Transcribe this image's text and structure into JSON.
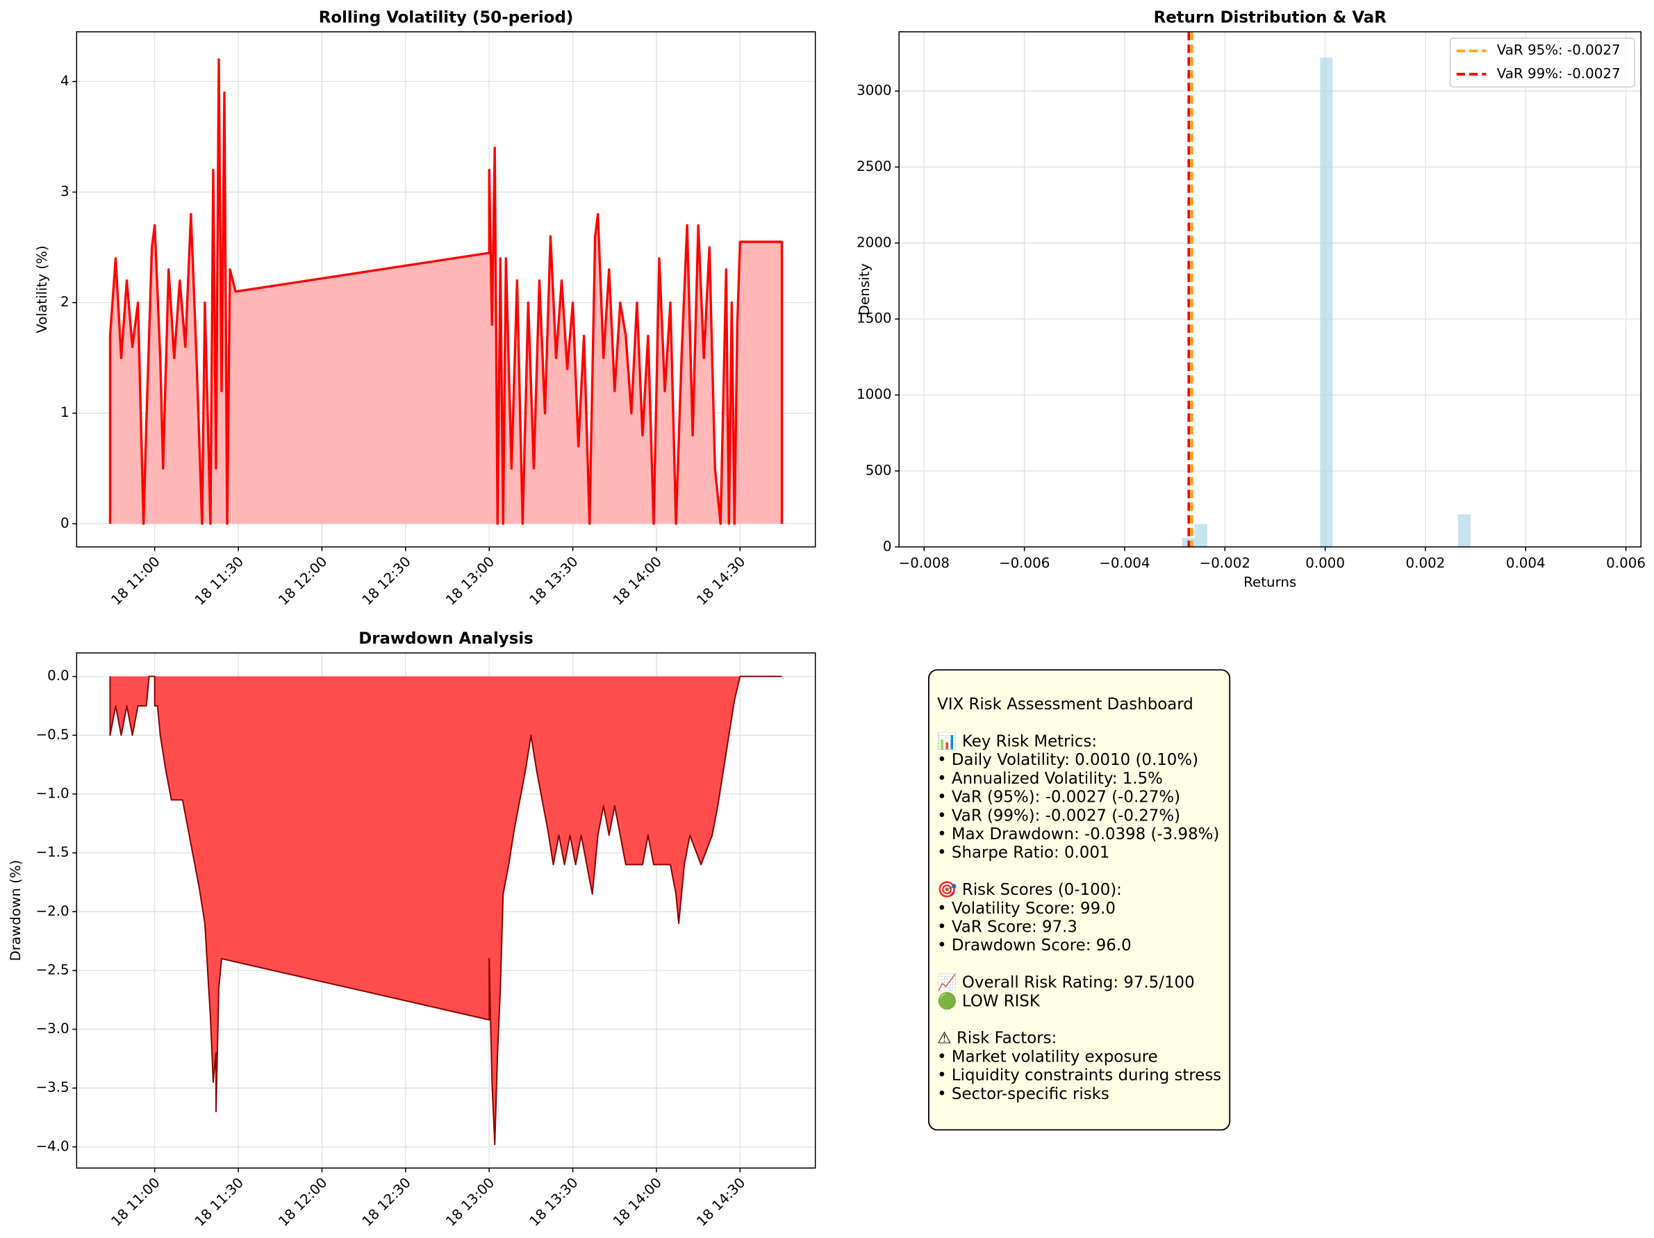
{
  "chart_data": [
    {
      "type": "line",
      "title": "Rolling Volatility (50-period)",
      "ylabel": "Volatility (%)",
      "color": "#ff0000",
      "fill_color": "#ffb3b3",
      "grid": true,
      "x": [
        "18 10:44",
        "18 10:44",
        "18 10:46",
        "18 10:48",
        "18 10:50",
        "18 10:52",
        "18 10:54",
        "18 10:56",
        "18 10:57",
        "18 10:59",
        "18 11:00",
        "18 11:02",
        "18 11:03",
        "18 11:05",
        "18 11:07",
        "18 11:09",
        "18 11:11",
        "18 11:13",
        "18 11:15",
        "18 11:17",
        "18 11:18",
        "18 11:20",
        "18 11:21",
        "18 11:22",
        "18 11:23",
        "18 11:24",
        "18 11:25",
        "18 11:26",
        "18 11:27",
        "18 11:29",
        "18 13:00",
        "18 13:00",
        "18 13:01",
        "18 13:02",
        "18 13:03",
        "18 13:04",
        "18 13:05",
        "18 13:06",
        "18 13:08",
        "18 13:10",
        "18 13:12",
        "18 13:14",
        "18 13:16",
        "18 13:18",
        "18 13:20",
        "18 13:22",
        "18 13:24",
        "18 13:26",
        "18 13:28",
        "18 13:30",
        "18 13:32",
        "18 13:34",
        "18 13:36",
        "18 13:38",
        "18 13:39",
        "18 13:41",
        "18 13:43",
        "18 13:45",
        "18 13:47",
        "18 13:49",
        "18 13:51",
        "18 13:53",
        "18 13:55",
        "18 13:57",
        "18 13:59",
        "18 14:01",
        "18 14:03",
        "18 14:05",
        "18 14:07",
        "18 14:09",
        "18 14:11",
        "18 14:13",
        "18 14:15",
        "18 14:17",
        "18 14:19",
        "18 14:21",
        "18 14:23",
        "18 14:25",
        "18 14:26",
        "18 14:27",
        "18 14:28",
        "18 14:29",
        "18 14:30",
        "18 14:45",
        "18 14:45"
      ],
      "values": [
        0,
        1.7,
        2.4,
        1.5,
        2.2,
        1.6,
        2.0,
        0,
        0.9,
        2.5,
        2.7,
        1.5,
        0.5,
        2.3,
        1.5,
        2.2,
        1.6,
        2.8,
        1.5,
        0,
        2.0,
        0,
        3.2,
        0.5,
        4.2,
        1.2,
        3.9,
        0,
        2.3,
        2.1,
        2.45,
        3.2,
        1.8,
        3.4,
        0,
        2.4,
        0,
        2.4,
        0.5,
        2.2,
        0,
        2.0,
        0.5,
        2.2,
        1.0,
        2.6,
        1.5,
        2.2,
        1.4,
        2.0,
        0.7,
        1.7,
        0,
        2.6,
        2.8,
        1.5,
        2.3,
        1.2,
        2.0,
        1.7,
        1.0,
        2.0,
        0.8,
        1.7,
        0,
        2.4,
        1.2,
        2.0,
        0,
        1.5,
        2.7,
        0.8,
        2.7,
        1.5,
        2.5,
        0.5,
        0,
        2.3,
        0,
        2.0,
        0,
        1.8,
        2.55,
        2.55,
        0
      ],
      "xlim": [
        "18 10:32",
        "18 14:57"
      ],
      "xticks": [
        "18 11:00",
        "18 11:30",
        "18 12:00",
        "18 12:30",
        "18 13:00",
        "18 13:30",
        "18 14:00",
        "18 14:30"
      ],
      "ylim": [
        -0.21,
        4.45
      ],
      "yticks": [
        0,
        1,
        2,
        3,
        4
      ]
    },
    {
      "type": "histogram",
      "title": "Return Distribution & VaR",
      "xlabel": "Returns",
      "ylabel": "Density",
      "color": "#add8e6",
      "grid": true,
      "legend": "upper right",
      "bins": [
        -0.00285,
        -0.0026,
        -0.00235,
        -0.0021,
        -0.00185,
        -0.0016,
        -0.00135,
        -0.0011,
        -0.00085,
        -0.0006,
        -0.00035,
        -0.0001,
        0.00015,
        0.0004,
        0.00065,
        0.0009,
        0.00115,
        0.0014,
        0.00165,
        0.0019,
        0.00215,
        0.0024,
        0.00265,
        0.0029
      ],
      "counts": [
        60,
        150,
        0,
        0,
        0,
        0,
        0,
        0,
        0,
        0,
        0,
        3220,
        0,
        0,
        0,
        0,
        0,
        0,
        0,
        0,
        0,
        0,
        215
      ],
      "vlines": [
        {
          "name": "VaR 95%: -0.0027",
          "value": -0.00266,
          "color": "#ffa500"
        },
        {
          "name": "VaR 99%: -0.0027",
          "value": -0.00272,
          "color": "#ff0000"
        }
      ],
      "xlim": [
        -0.0085,
        0.0063
      ],
      "xticks": [
        {
          "value": -0.008,
          "label": "−0.008"
        },
        {
          "value": -0.006,
          "label": "−0.006"
        },
        {
          "value": -0.004,
          "label": "−0.004"
        },
        {
          "value": -0.002,
          "label": "−0.002"
        },
        {
          "value": 0,
          "label": "0.000"
        },
        0.002,
        0.004,
        0.006
      ],
      "ylim": [
        0,
        3390
      ],
      "yticks": [
        0,
        500,
        1000,
        1500,
        2000,
        2500,
        3000
      ]
    },
    {
      "type": "area",
      "title": "Drawdown Analysis",
      "ylabel": "Drawdown (%)",
      "color": "#8b0000",
      "fill_color": "#ff4d4d",
      "grid": true,
      "x": [
        "18 10:44",
        "18 10:44",
        "18 10:46",
        "18 10:48",
        "18 10:50",
        "18 10:52",
        "18 10:54",
        "18 10:57",
        "18 10:58",
        "18 11:00",
        "18 11:00",
        "18 11:01",
        "18 11:02",
        "18 11:04",
        "18 11:06",
        "18 11:10",
        "18 11:12",
        "18 11:14",
        "18 11:16",
        "18 11:18",
        "18 11:19",
        "18 11:20",
        "18 11:21",
        "18 11:22",
        "18 11:22",
        "18 11:23",
        "18 11:24",
        "18 13:00",
        "18 13:00",
        "18 13:01",
        "18 13:02",
        "18 13:03",
        "18 13:04",
        "18 13:05",
        "18 13:07",
        "18 13:09",
        "18 13:11",
        "18 13:13",
        "18 13:15",
        "18 13:17",
        "18 13:19",
        "18 13:21",
        "18 13:23",
        "18 13:25",
        "18 13:27",
        "18 13:29",
        "18 13:31",
        "18 13:33",
        "18 13:35",
        "18 13:37",
        "18 13:39",
        "18 13:41",
        "18 13:43",
        "18 13:45",
        "18 13:47",
        "18 13:49",
        "18 13:55",
        "18 13:57",
        "18 13:59",
        "18 14:05",
        "18 14:07",
        "18 14:08",
        "18 14:10",
        "18 14:12",
        "18 14:16",
        "18 14:20",
        "18 14:22",
        "18 14:24",
        "18 14:26",
        "18 14:28",
        "18 14:30",
        "18 14:45"
      ],
      "values": [
        0,
        -0.5,
        -0.25,
        -0.5,
        -0.25,
        -0.5,
        -0.25,
        -0.25,
        0,
        0,
        -0.25,
        -0.25,
        -0.5,
        -0.8,
        -1.05,
        -1.05,
        -1.3,
        -1.55,
        -1.8,
        -2.1,
        -2.5,
        -2.9,
        -3.45,
        -3.2,
        -3.7,
        -2.65,
        -2.4,
        -2.92,
        -2.4,
        -3.45,
        -3.98,
        -3.2,
        -2.65,
        -1.85,
        -1.6,
        -1.3,
        -1.05,
        -0.8,
        -0.5,
        -0.8,
        -1.05,
        -1.3,
        -1.6,
        -1.35,
        -1.6,
        -1.35,
        -1.6,
        -1.35,
        -1.6,
        -1.85,
        -1.35,
        -1.1,
        -1.35,
        -1.1,
        -1.35,
        -1.6,
        -1.6,
        -1.35,
        -1.6,
        -1.6,
        -1.85,
        -2.1,
        -1.6,
        -1.35,
        -1.6,
        -1.35,
        -1.1,
        -0.8,
        -0.5,
        -0.2,
        0,
        0
      ],
      "xlim": [
        "18 10:32",
        "18 14:57"
      ],
      "xticks": [
        "18 11:00",
        "18 11:30",
        "18 12:00",
        "18 12:30",
        "18 13:00",
        "18 13:30",
        "18 14:00",
        "18 14:30"
      ],
      "ylim": [
        -4.18,
        0.2
      ],
      "yticks": [
        {
          "value": 0,
          "label": "0.0"
        },
        {
          "value": -0.5,
          "label": "−0.5"
        },
        {
          "value": -1,
          "label": "−1.0"
        },
        {
          "value": -1.5,
          "label": "−1.5"
        },
        {
          "value": -2,
          "label": "−2.0"
        },
        {
          "value": -2.5,
          "label": "−2.5"
        },
        {
          "value": -3,
          "label": "−3.0"
        },
        {
          "value": -3.5,
          "label": "−3.5"
        },
        {
          "value": -4,
          "label": "−4.0"
        }
      ]
    }
  ],
  "info_panel": {
    "title": "VIX Risk Assessment Dashboard",
    "sections": [
      [
        "📊 Key Risk Metrics:",
        "• Daily Volatility: 0.0010 (0.10%)",
        "• Annualized Volatility: 1.5%",
        "• VaR (95%): -0.0027 (-0.27%)",
        "• VaR (99%): -0.0027 (-0.27%)",
        "• Max Drawdown: -0.0398 (-3.98%)",
        "• Sharpe Ratio: 0.001"
      ],
      [
        "🎯 Risk Scores (0-100):",
        "• Volatility Score: 99.0",
        "• VaR Score: 97.3",
        "• Drawdown Score: 96.0"
      ],
      [
        "📈 Overall Risk Rating: 97.5/100",
        "🟢 LOW RISK"
      ],
      [
        "⚠ Risk Factors:",
        "• Market volatility exposure",
        "• Liquidity constraints during stress",
        "• Sector-specific risks"
      ]
    ]
  }
}
